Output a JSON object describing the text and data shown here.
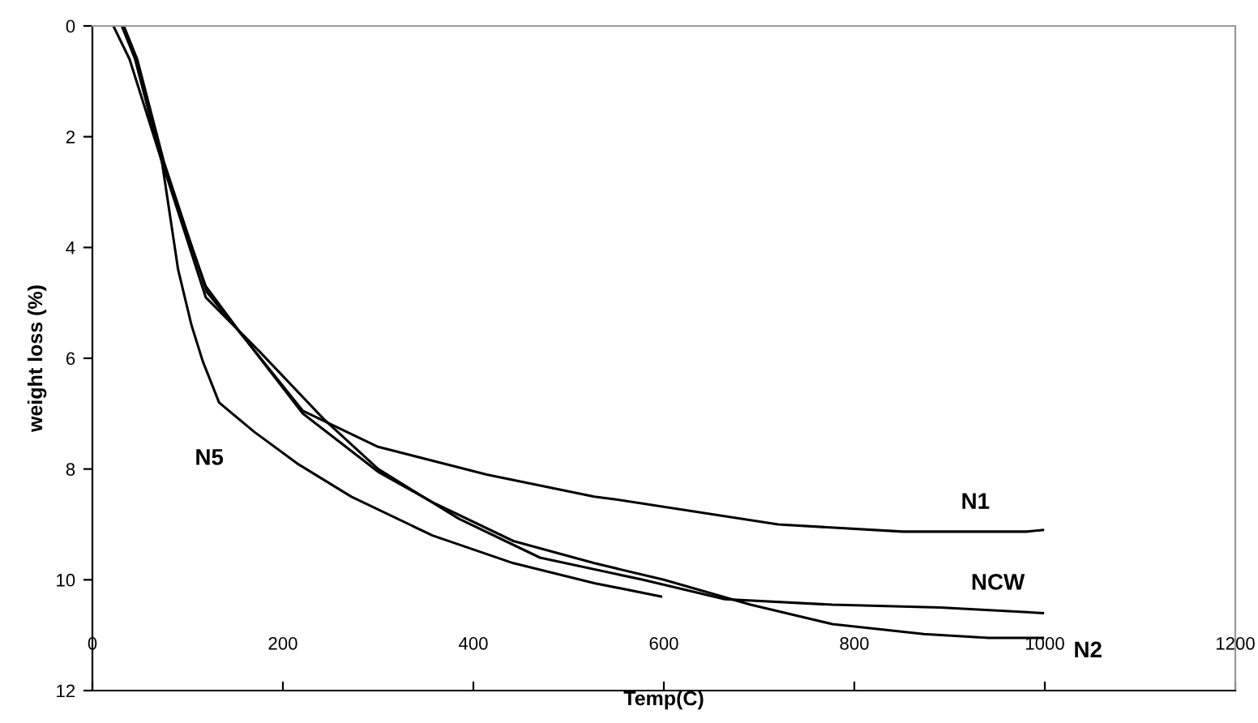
{
  "chart_data": {
    "type": "line",
    "xlabel": "Temp(C)",
    "ylabel": "weight loss (%)",
    "xlim": [
      0,
      1200
    ],
    "xticks": [
      0,
      200,
      400,
      600,
      800,
      1000,
      1200
    ],
    "ylim": [
      12,
      0
    ],
    "yticks": [
      0,
      2,
      4,
      6,
      8,
      10,
      12
    ],
    "grid": false,
    "legend": false,
    "series": [
      {
        "name": "N1",
        "color": "#000000",
        "x": [
          31,
          45,
          73,
          119,
          158,
          221,
          300,
          414,
          527,
          550,
          720,
          851,
          981,
          998
        ],
        "values": [
          0,
          0.6,
          2.45,
          4.7,
          5.6,
          6.95,
          7.6,
          8.1,
          8.5,
          8.55,
          9.0,
          9.13,
          9.13,
          9.1
        ]
      },
      {
        "name": "NCW",
        "color": "#000000",
        "x": [
          31,
          45,
          73,
          119,
          175,
          243,
          300,
          385,
          470,
          578,
          664,
          777,
          890,
          998
        ],
        "values": [
          0,
          0.6,
          2.45,
          4.9,
          5.87,
          7.1,
          8.0,
          8.9,
          9.6,
          10.0,
          10.35,
          10.45,
          10.5,
          10.6
        ]
      },
      {
        "name": "N2",
        "color": "#000000",
        "x": [
          33,
          47,
          75,
          120,
          158,
          221,
          300,
          357,
          442,
          527,
          600,
          691,
          777,
          873,
          941,
          998
        ],
        "values": [
          0,
          0.6,
          2.45,
          4.8,
          5.6,
          7.0,
          8.05,
          8.6,
          9.3,
          9.7,
          10.0,
          10.45,
          10.8,
          10.98,
          11.05,
          11.05
        ]
      },
      {
        "name": "N5",
        "color": "#000000",
        "x": [
          22,
          39,
          73,
          90,
          104,
          116,
          133,
          170,
          215,
          272,
          357,
          442,
          527,
          597
        ],
        "values": [
          0,
          0.6,
          2.45,
          4.4,
          5.4,
          6.06,
          6.8,
          7.33,
          7.9,
          8.5,
          9.2,
          9.7,
          10.06,
          10.3
        ]
      }
    ]
  }
}
